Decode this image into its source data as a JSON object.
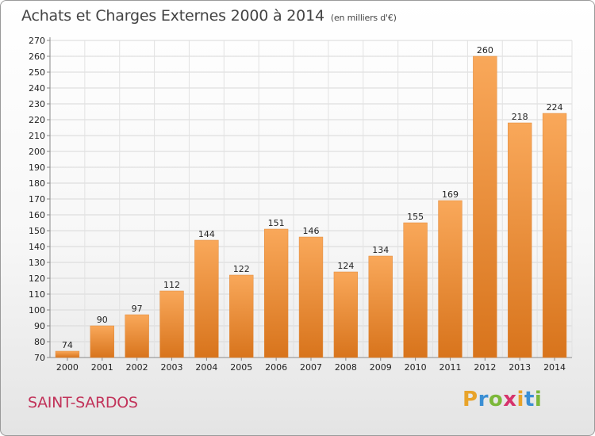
{
  "header": {
    "title": "Achats et Charges Externes 2000 à 2014",
    "subtitle": "(en milliers d'€)"
  },
  "footer": {
    "commune": "SAINT-SARDOS",
    "logo": {
      "letters": [
        "P",
        "r",
        "o",
        "x",
        "i",
        "t",
        "i"
      ],
      "colors": [
        "#e8a32a",
        "#3b8fd4",
        "#7cb83a",
        "#d6336c",
        "#e8a32a",
        "#3b8fd4",
        "#7cb83a"
      ]
    }
  },
  "chart_data": {
    "type": "bar",
    "categories": [
      "2000",
      "2001",
      "2002",
      "2003",
      "2004",
      "2005",
      "2006",
      "2007",
      "2008",
      "2009",
      "2010",
      "2011",
      "2012",
      "2013",
      "2014"
    ],
    "values": [
      74,
      90,
      97,
      112,
      144,
      122,
      151,
      146,
      124,
      134,
      155,
      169,
      260,
      218,
      224
    ],
    "title": "Achats et Charges Externes 2000 à 2014",
    "ylim": [
      70,
      270
    ],
    "yticks": [
      70,
      80,
      90,
      100,
      110,
      120,
      130,
      140,
      150,
      160,
      170,
      180,
      190,
      200,
      210,
      220,
      230,
      240,
      250,
      260,
      270
    ],
    "grid": true,
    "bar_color": "#f0923a"
  }
}
